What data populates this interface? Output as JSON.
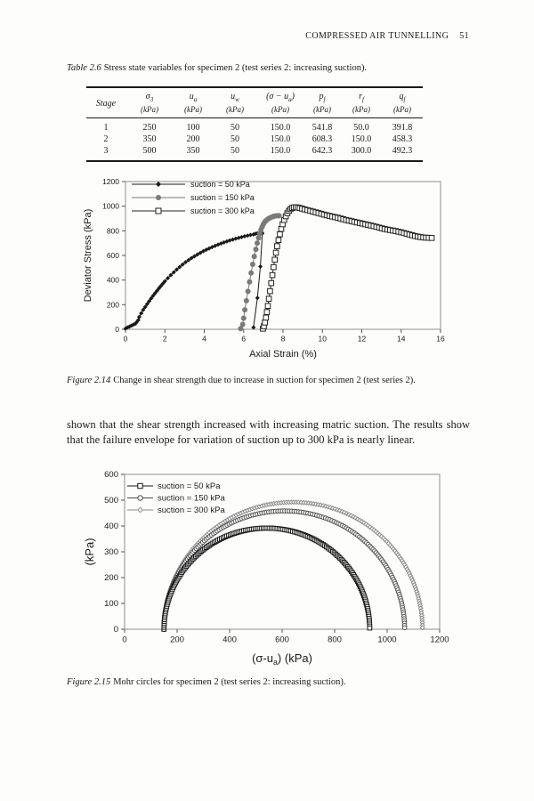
{
  "page": {
    "header": "COMPRESSED AIR TUNNELLING",
    "page_number": "51"
  },
  "table": {
    "caption_label": "Table 2.6",
    "caption_text": "Stress state variables for specimen 2 (test series 2: increasing suction).",
    "columns": [
      {
        "base": "Stage",
        "sub": "",
        "post": "",
        "unit": ""
      },
      {
        "base": "σ",
        "sub": "3",
        "post": "",
        "unit": "(kPa)"
      },
      {
        "base": "u",
        "sub": "a",
        "post": "",
        "unit": "(kPa)"
      },
      {
        "base": "u",
        "sub": "w",
        "post": "",
        "unit": "(kPa)"
      },
      {
        "base": "(σ − u",
        "sub": "a",
        "post": ")",
        "unit": "(kPa)"
      },
      {
        "base": "p",
        "sub": "f",
        "post": "",
        "unit": "(kPa)"
      },
      {
        "base": "r",
        "sub": "f",
        "post": "",
        "unit": "(kPa)"
      },
      {
        "base": "q",
        "sub": "f",
        "post": "",
        "unit": "(kPa)"
      }
    ],
    "rows": [
      [
        "1",
        "250",
        "100",
        "50",
        "150.0",
        "541.8",
        "50.0",
        "391.8"
      ],
      [
        "2",
        "350",
        "200",
        "50",
        "150.0",
        "608.3",
        "150.0",
        "458.3"
      ],
      [
        "3",
        "500",
        "350",
        "50",
        "150.0",
        "642.3",
        "300.0",
        "492.3"
      ]
    ]
  },
  "figure1": {
    "caption_label": "Figure 2.14",
    "caption_text": "Change in shear strength due to increase in suction for specimen 2 (test series 2)."
  },
  "paragraph": "shown that the shear strength increased with increasing matric suction. The results show that the failure envelope for variation of suction up to 300 kPa is nearly linear.",
  "figure2": {
    "caption_label": "Figure 2.15",
    "caption_text": "Mohr circles for specimen 2 (test series 2: increasing suction)."
  },
  "chart_data": [
    {
      "type": "line",
      "xlabel": "Axial Strain (%)",
      "ylabel": "Deviator Stress (kPa)",
      "xlim": [
        0,
        16
      ],
      "ylim": [
        0,
        1200
      ],
      "xticks": [
        0,
        2,
        4,
        6,
        8,
        10,
        12,
        14,
        16
      ],
      "yticks": [
        0,
        200,
        400,
        600,
        800,
        1000,
        1200
      ],
      "grid": false,
      "legend_position": "top-left",
      "series": [
        {
          "name": "suction = 50 kPa",
          "marker": "filled-diamond",
          "color": "#1a1a1a",
          "points": [
            [
              0,
              5
            ],
            [
              0.1,
              15
            ],
            [
              0.2,
              22
            ],
            [
              0.3,
              30
            ],
            [
              0.4,
              38
            ],
            [
              0.5,
              45
            ],
            [
              0.55,
              55
            ],
            [
              0.65,
              75
            ],
            [
              0.7,
              100
            ],
            [
              0.8,
              130
            ],
            [
              0.9,
              158
            ],
            [
              1.0,
              182
            ],
            [
              1.1,
              205
            ],
            [
              1.2,
              228
            ],
            [
              1.3,
              250
            ],
            [
              1.4,
              272
            ],
            [
              1.5,
              293
            ],
            [
              1.6,
              313
            ],
            [
              1.7,
              333
            ],
            [
              1.8,
              352
            ],
            [
              1.9,
              371
            ],
            [
              2.0,
              390
            ],
            [
              2.15,
              416
            ],
            [
              2.3,
              440
            ],
            [
              2.45,
              463
            ],
            [
              2.6,
              485
            ],
            [
              2.75,
              506
            ],
            [
              2.9,
              526
            ],
            [
              3.05,
              545
            ],
            [
              3.2,
              562
            ],
            [
              3.35,
              578
            ],
            [
              3.5,
              593
            ],
            [
              3.65,
              607
            ],
            [
              3.8,
              621
            ],
            [
              3.95,
              634
            ],
            [
              4.1,
              646
            ],
            [
              4.25,
              657
            ],
            [
              4.4,
              668
            ],
            [
              4.55,
              678
            ],
            [
              4.7,
              688
            ],
            [
              4.85,
              697
            ],
            [
              5.0,
              706
            ],
            [
              5.15,
              714
            ],
            [
              5.3,
              722
            ],
            [
              5.45,
              729
            ],
            [
              5.6,
              736
            ],
            [
              5.75,
              743
            ],
            [
              5.9,
              749
            ],
            [
              6.05,
              755
            ],
            [
              6.2,
              761
            ],
            [
              6.35,
              766
            ],
            [
              6.5,
              771
            ],
            [
              6.6,
              776
            ],
            [
              6.7,
              780
            ],
            [
              6.8,
              784
            ],
            [
              6.9,
              787
            ],
            [
              6.95,
              780
            ],
            [
              6.85,
              510
            ],
            [
              6.7,
              255
            ],
            [
              6.5,
              15
            ]
          ]
        },
        {
          "name": "suction = 150 kPa",
          "marker": "filled-circle",
          "color": "#7a7a7a",
          "points": [
            [
              5.85,
              5
            ],
            [
              5.95,
              40
            ],
            [
              6.0,
              90
            ],
            [
              6.06,
              158
            ],
            [
              6.14,
              232
            ],
            [
              6.22,
              308
            ],
            [
              6.3,
              385
            ],
            [
              6.38,
              458
            ],
            [
              6.46,
              528
            ],
            [
              6.54,
              592
            ],
            [
              6.62,
              650
            ],
            [
              6.69,
              700
            ],
            [
              6.76,
              742
            ],
            [
              6.82,
              778
            ],
            [
              6.88,
              808
            ],
            [
              6.94,
              833
            ],
            [
              7.0,
              853
            ],
            [
              7.06,
              868
            ],
            [
              7.12,
              880
            ],
            [
              7.19,
              890
            ],
            [
              7.26,
              898
            ],
            [
              7.34,
              905
            ],
            [
              7.42,
              911
            ],
            [
              7.5,
              916
            ],
            [
              7.58,
              920
            ],
            [
              7.66,
              922
            ],
            [
              7.74,
              923
            ],
            [
              7.8,
              923
            ]
          ]
        },
        {
          "name": "suction = 300 kPa",
          "marker": "open-square",
          "color": "#222222",
          "points": [
            [
              6.98,
              5
            ],
            [
              7.03,
              25
            ],
            [
              7.08,
              55
            ],
            [
              7.13,
              95
            ],
            [
              7.18,
              140
            ],
            [
              7.23,
              190
            ],
            [
              7.28,
              248
            ],
            [
              7.34,
              310
            ],
            [
              7.4,
              375
            ],
            [
              7.46,
              440
            ],
            [
              7.52,
              505
            ],
            [
              7.58,
              565
            ],
            [
              7.64,
              622
            ],
            [
              7.7,
              675
            ],
            [
              7.77,
              725
            ],
            [
              7.84,
              772
            ],
            [
              7.91,
              815
            ],
            [
              7.98,
              853
            ],
            [
              8.06,
              888
            ],
            [
              8.14,
              918
            ],
            [
              8.22,
              943
            ],
            [
              8.3,
              962
            ],
            [
              8.38,
              976
            ],
            [
              8.46,
              985
            ],
            [
              8.55,
              990
            ],
            [
              8.65,
              991
            ],
            [
              8.75,
              989
            ],
            [
              8.85,
              985
            ],
            [
              8.97,
              980
            ],
            [
              9.1,
              974
            ],
            [
              9.24,
              968
            ],
            [
              9.38,
              962
            ],
            [
              9.52,
              956
            ],
            [
              9.66,
              950
            ],
            [
              9.8,
              944
            ],
            [
              9.94,
              938
            ],
            [
              10.08,
              932
            ],
            [
              10.22,
              926
            ],
            [
              10.36,
              921
            ],
            [
              10.5,
              916
            ],
            [
              10.64,
              911
            ],
            [
              10.78,
              906
            ],
            [
              10.92,
              900
            ],
            [
              11.06,
              894
            ],
            [
              11.2,
              888
            ],
            [
              11.34,
              883
            ],
            [
              11.48,
              878
            ],
            [
              11.62,
              873
            ],
            [
              11.76,
              868
            ],
            [
              11.9,
              863
            ],
            [
              12.04,
              858
            ],
            [
              12.18,
              853
            ],
            [
              12.32,
              848
            ],
            [
              12.46,
              843
            ],
            [
              12.6,
              838
            ],
            [
              12.74,
              832
            ],
            [
              12.88,
              826
            ],
            [
              13.02,
              820
            ],
            [
              13.16,
              815
            ],
            [
              13.3,
              810
            ],
            [
              13.44,
              806
            ],
            [
              13.58,
              802
            ],
            [
              13.72,
              798
            ],
            [
              13.86,
              793
            ],
            [
              14.0,
              788
            ],
            [
              14.14,
              782
            ],
            [
              14.28,
              776
            ],
            [
              14.42,
              770
            ],
            [
              14.56,
              764
            ],
            [
              14.7,
              758
            ],
            [
              14.84,
              753
            ],
            [
              14.98,
              749
            ],
            [
              15.12,
              746
            ],
            [
              15.26,
              744
            ],
            [
              15.4,
              743
            ],
            [
              15.55,
              742
            ]
          ]
        }
      ]
    },
    {
      "type": "mohr-circles",
      "xlabel_parts": {
        "pre": "(σ-u",
        "sub": "a",
        "post": ") (kPa)"
      },
      "ylabel": "(kPa)",
      "xlim": [
        0,
        1200
      ],
      "ylim": [
        0,
        600
      ],
      "xticks": [
        0,
        200,
        400,
        600,
        800,
        1000,
        1200
      ],
      "yticks": [
        0,
        100,
        200,
        300,
        400,
        500,
        600
      ],
      "grid": false,
      "legend_position": "top-left",
      "circles": [
        {
          "name": "suction = 50 kPa",
          "marker": "open-square",
          "color": "#151515",
          "start": 150,
          "end": 933.6,
          "radius": 391.8
        },
        {
          "name": "suction = 150 kPa",
          "marker": "open-circle",
          "color": "#4f4f4f",
          "start": 150,
          "end": 1066.6,
          "radius": 458.3
        },
        {
          "name": "suction = 300 kPa",
          "marker": "open-diamond",
          "color": "#8c8c8c",
          "start": 150,
          "end": 1134.6,
          "radius": 492.3
        }
      ]
    }
  ]
}
